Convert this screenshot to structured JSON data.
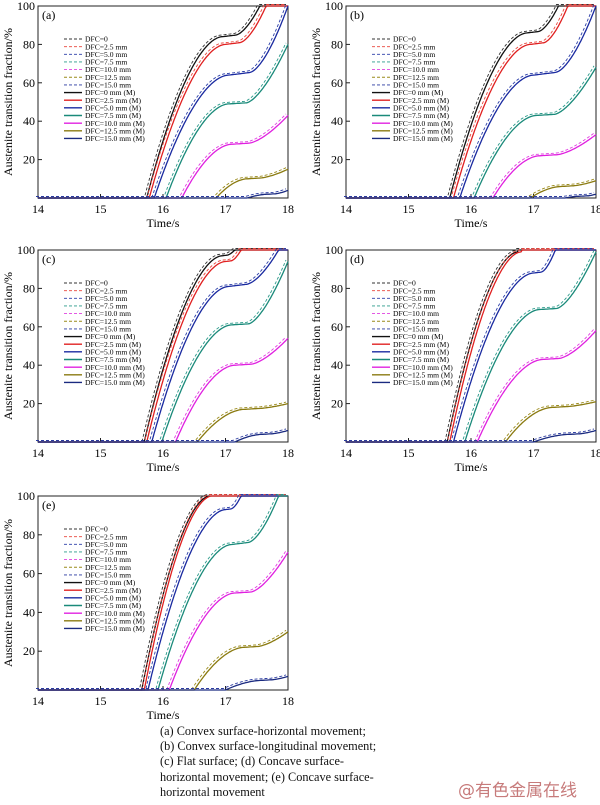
{
  "figure": {
    "caption_lines": [
      "(a) Convex surface-horizontal movement;",
      "(b) Convex surface-longitudinal movement;",
      "(c) Flat surface; (d) Concave surface-",
      "horizontal movement; (e) Concave surface-",
      "horizontal movement"
    ],
    "watermark": "@有色金属在线"
  },
  "legend_entries": [
    {
      "label": "DFC=0",
      "color": "#333333",
      "dash": true
    },
    {
      "label": "DFC=2.5 mm",
      "color": "#e8453c",
      "dash": true
    },
    {
      "label": "DFC=5.0 mm",
      "color": "#2b3ea8",
      "dash": true
    },
    {
      "label": "DFC=7.5 mm",
      "color": "#2a9a8a",
      "dash": true
    },
    {
      "label": "DFC=10.0 mm",
      "color": "#e040e0",
      "dash": true
    },
    {
      "label": "DFC=12.5 mm",
      "color": "#9a8a1a",
      "dash": true
    },
    {
      "label": "DFC=15.0 mm",
      "color": "#2a3aa0",
      "dash": true
    },
    {
      "label": "DFC=0 mm (M)",
      "color": "#111111",
      "dash": false
    },
    {
      "label": "DFC=2.5 mm (M)",
      "color": "#e02020",
      "dash": false
    },
    {
      "label": "DFC=5.0 mm (M)",
      "color": "#1a2aa0",
      "dash": false
    },
    {
      "label": "DFC=7.5 mm (M)",
      "color": "#1a8a7a",
      "dash": false
    },
    {
      "label": "DFC=10.0 mm (M)",
      "color": "#e020e0",
      "dash": false
    },
    {
      "label": "DFC=12.5 mm (M)",
      "color": "#8a7a10",
      "dash": false
    },
    {
      "label": "DFC=15.0 mm (M)",
      "color": "#1a2a80",
      "dash": false
    }
  ],
  "chart_data": [
    {
      "panel": "(a)",
      "type": "line",
      "xlabel": "Time/s",
      "ylabel": "Austenite transition fraction/%",
      "xlim": [
        14,
        18
      ],
      "ylim": [
        0,
        100
      ],
      "xticks": [
        "14",
        "15",
        "16",
        "17",
        "18"
      ],
      "yticks": [
        "20",
        "40",
        "60",
        "80",
        "100"
      ],
      "curves": [
        {
          "start": 15.74,
          "plateau": 84,
          "plateau_t": 16.95,
          "full_t": 17.55
        },
        {
          "start": 15.78,
          "plateau": 80,
          "plateau_t": 17.0,
          "full_t": 17.65
        },
        {
          "start": 15.86,
          "plateau": 64,
          "plateau_t": 17.05,
          "full_t": 18.0
        },
        {
          "start": 16.05,
          "plateau": 49,
          "plateau_t": 17.05,
          "end_val": 80
        },
        {
          "start": 16.3,
          "plateau": 28,
          "plateau_t": 17.1,
          "end_val": 43
        },
        {
          "start": 16.85,
          "plateau": 10,
          "plateau_t": 17.35,
          "end_val": 15
        },
        {
          "start": 17.35,
          "plateau": 2,
          "plateau_t": 17.7,
          "end_val": 4
        }
      ]
    },
    {
      "panel": "(b)",
      "type": "line",
      "xlabel": "Time/s",
      "ylabel": "Austenite transition fraction/%",
      "xlim": [
        14,
        18
      ],
      "ylim": [
        0,
        100
      ],
      "xticks": [
        "14",
        "15",
        "16",
        "17",
        "18"
      ],
      "yticks": [
        "20",
        "40",
        "60",
        "80",
        "100"
      ],
      "curves": [
        {
          "start": 15.66,
          "plateau": 86,
          "plateau_t": 16.9,
          "full_t": 17.4
        },
        {
          "start": 15.72,
          "plateau": 80,
          "plateau_t": 16.95,
          "full_t": 17.55
        },
        {
          "start": 15.82,
          "plateau": 64,
          "plateau_t": 17.0,
          "full_t": 18.0
        },
        {
          "start": 16.05,
          "plateau": 43,
          "plateau_t": 17.05,
          "end_val": 68
        },
        {
          "start": 16.35,
          "plateau": 22,
          "plateau_t": 17.1,
          "end_val": 33
        },
        {
          "start": 16.95,
          "plateau": 6,
          "plateau_t": 17.45,
          "end_val": 9
        },
        {
          "start": 17.5,
          "plateau": 1,
          "plateau_t": 17.8,
          "end_val": 2
        }
      ]
    },
    {
      "panel": "(c)",
      "type": "line",
      "xlabel": "Time/s",
      "ylabel": "Austenite transition fraction/%",
      "xlim": [
        14,
        18
      ],
      "ylim": [
        0,
        100
      ],
      "xticks": [
        "14",
        "15",
        "16",
        "17",
        "18"
      ],
      "yticks": [
        "20",
        "40",
        "60",
        "80",
        "100"
      ],
      "curves": [
        {
          "start": 15.7,
          "plateau": 97,
          "plateau_t": 16.95,
          "full_t": 17.15
        },
        {
          "start": 15.74,
          "plateau": 94,
          "plateau_t": 17.0,
          "full_t": 17.25
        },
        {
          "start": 15.82,
          "plateau": 81,
          "plateau_t": 17.05,
          "full_t": 17.85
        },
        {
          "start": 15.98,
          "plateau": 61,
          "plateau_t": 17.1,
          "end_val": 94
        },
        {
          "start": 16.2,
          "plateau": 40,
          "plateau_t": 17.15,
          "end_val": 54
        },
        {
          "start": 16.55,
          "plateau": 17,
          "plateau_t": 17.3,
          "end_val": 20
        },
        {
          "start": 17.15,
          "plateau": 4,
          "plateau_t": 17.6,
          "end_val": 6
        }
      ]
    },
    {
      "panel": "(d)",
      "type": "line",
      "xlabel": "Time/s",
      "ylabel": "Austenite transition fraction/%",
      "xlim": [
        14,
        18
      ],
      "ylim": [
        0,
        100
      ],
      "xticks": [
        "14",
        "15",
        "16",
        "17",
        "18"
      ],
      "yticks": [
        "20",
        "40",
        "60",
        "80",
        "100"
      ],
      "curves": [
        {
          "start": 15.62,
          "plateau": 99,
          "plateau_t": 16.75,
          "full_t": 16.8
        },
        {
          "start": 15.66,
          "plateau": 99,
          "plateau_t": 16.8,
          "full_t": 16.85
        },
        {
          "start": 15.72,
          "plateau": 88,
          "plateau_t": 17.0,
          "full_t": 17.35
        },
        {
          "start": 15.9,
          "plateau": 69,
          "plateau_t": 17.1,
          "end_val": 99
        },
        {
          "start": 16.1,
          "plateau": 43,
          "plateau_t": 17.15,
          "end_val": 58
        },
        {
          "start": 16.55,
          "plateau": 18,
          "plateau_t": 17.3,
          "end_val": 21
        },
        {
          "start": 17.0,
          "plateau": 4,
          "plateau_t": 17.6,
          "end_val": 6
        }
      ]
    },
    {
      "panel": "(e)",
      "type": "line",
      "xlabel": "Time/s",
      "ylabel": "Austenite transition fraction/%",
      "xlim": [
        14,
        18
      ],
      "ylim": [
        0,
        100
      ],
      "xticks": [
        "14",
        "15",
        "16",
        "17",
        "18"
      ],
      "yticks": [
        "20",
        "40",
        "60",
        "80",
        "100"
      ],
      "curves": [
        {
          "start": 15.66,
          "plateau": 100,
          "plateau_t": 16.75,
          "full_t": 16.75
        },
        {
          "start": 15.7,
          "plateau": 100,
          "plateau_t": 16.78,
          "full_t": 16.8
        },
        {
          "start": 15.76,
          "plateau": 93,
          "plateau_t": 17.0,
          "full_t": 17.25
        },
        {
          "start": 15.92,
          "plateau": 75,
          "plateau_t": 17.1,
          "full_t": 17.85
        },
        {
          "start": 16.1,
          "plateau": 50,
          "plateau_t": 17.15,
          "end_val": 71
        },
        {
          "start": 16.5,
          "plateau": 22,
          "plateau_t": 17.3,
          "end_val": 30
        },
        {
          "start": 17.0,
          "plateau": 5,
          "plateau_t": 17.6,
          "end_val": 7
        }
      ]
    }
  ]
}
